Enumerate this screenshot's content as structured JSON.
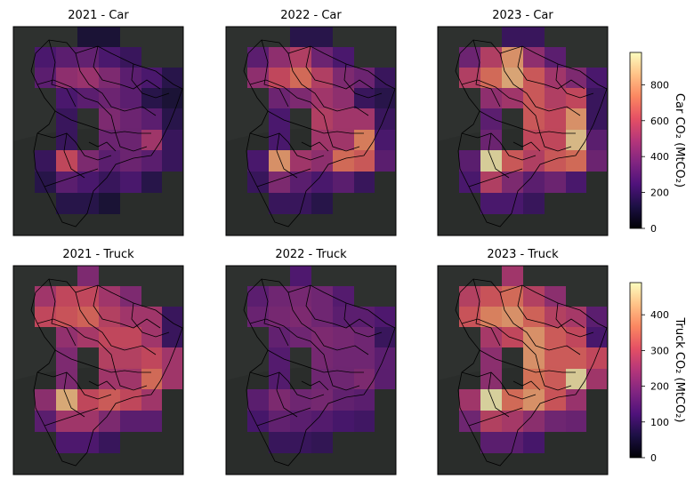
{
  "chart_data": {
    "type": "heatmap",
    "grid_rows": 10,
    "grid_cols": 8,
    "panels": [
      {
        "title": "2021 - Car",
        "group": "car",
        "values": [
          [
            0,
            0,
            0,
            100,
            100,
            0,
            0,
            0
          ],
          [
            0,
            250,
            300,
            320,
            250,
            200,
            0,
            0
          ],
          [
            0,
            300,
            450,
            480,
            400,
            300,
            250,
            150
          ],
          [
            0,
            0,
            250,
            300,
            350,
            300,
            150,
            100
          ],
          [
            0,
            0,
            200,
            0,
            400,
            350,
            300,
            150
          ],
          [
            0,
            0,
            200,
            0,
            350,
            350,
            500,
            200
          ],
          [
            0,
            200,
            600,
            400,
            300,
            350,
            300,
            200
          ],
          [
            0,
            150,
            300,
            250,
            200,
            250,
            150,
            0
          ],
          [
            0,
            0,
            150,
            150,
            100,
            0,
            0,
            0
          ],
          [
            0,
            0,
            0,
            0,
            0,
            0,
            0,
            0
          ]
        ]
      },
      {
        "title": "2022 - Car",
        "group": "car",
        "values": [
          [
            0,
            0,
            0,
            150,
            150,
            0,
            0,
            0
          ],
          [
            0,
            300,
            450,
            550,
            350,
            250,
            0,
            0
          ],
          [
            0,
            450,
            600,
            700,
            550,
            400,
            350,
            200
          ],
          [
            0,
            0,
            350,
            400,
            500,
            450,
            200,
            150
          ],
          [
            0,
            0,
            250,
            0,
            550,
            500,
            500,
            200
          ],
          [
            0,
            0,
            250,
            0,
            500,
            500,
            750,
            250
          ],
          [
            0,
            250,
            800,
            500,
            450,
            700,
            650,
            300
          ],
          [
            0,
            200,
            400,
            300,
            250,
            300,
            200,
            0
          ],
          [
            0,
            0,
            200,
            200,
            150,
            0,
            0,
            0
          ],
          [
            0,
            0,
            0,
            0,
            0,
            0,
            0,
            0
          ]
        ]
      },
      {
        "title": "2023 - Car",
        "group": "car",
        "values": [
          [
            0,
            0,
            0,
            200,
            200,
            0,
            0,
            0
          ],
          [
            0,
            350,
            550,
            800,
            450,
            300,
            0,
            0
          ],
          [
            0,
            550,
            700,
            850,
            650,
            500,
            400,
            250
          ],
          [
            0,
            0,
            450,
            500,
            650,
            550,
            600,
            200
          ],
          [
            0,
            0,
            300,
            0,
            650,
            600,
            800,
            200
          ],
          [
            0,
            0,
            350,
            0,
            600,
            600,
            900,
            300
          ],
          [
            0,
            300,
            950,
            650,
            550,
            650,
            700,
            350
          ],
          [
            0,
            250,
            550,
            400,
            300,
            350,
            250,
            0
          ],
          [
            0,
            0,
            250,
            250,
            200,
            0,
            0,
            0
          ],
          [
            0,
            0,
            0,
            0,
            0,
            0,
            0,
            0
          ]
        ]
      },
      {
        "title": "2021 - Truck",
        "group": "truck",
        "values": [
          [
            0,
            0,
            0,
            200,
            0,
            0,
            0,
            0
          ],
          [
            0,
            250,
            300,
            300,
            250,
            200,
            0,
            0
          ],
          [
            0,
            300,
            320,
            340,
            280,
            250,
            250,
            100
          ],
          [
            0,
            0,
            230,
            260,
            300,
            300,
            250,
            100
          ],
          [
            0,
            0,
            200,
            0,
            280,
            280,
            300,
            250
          ],
          [
            0,
            0,
            200,
            0,
            250,
            250,
            350,
            250
          ],
          [
            0,
            220,
            430,
            300,
            330,
            300,
            250,
            0
          ],
          [
            0,
            150,
            250,
            250,
            200,
            150,
            150,
            0
          ],
          [
            0,
            0,
            130,
            130,
            100,
            0,
            0,
            0
          ],
          [
            0,
            0,
            0,
            0,
            0,
            0,
            0,
            0
          ]
        ]
      },
      {
        "title": "2022 - Truck",
        "group": "truck",
        "values": [
          [
            0,
            0,
            0,
            130,
            0,
            0,
            0,
            0
          ],
          [
            0,
            150,
            180,
            190,
            180,
            140,
            0,
            0
          ],
          [
            0,
            170,
            190,
            200,
            180,
            150,
            150,
            130
          ],
          [
            0,
            0,
            160,
            180,
            200,
            190,
            180,
            100
          ],
          [
            0,
            0,
            140,
            0,
            190,
            180,
            180,
            150
          ],
          [
            0,
            0,
            140,
            0,
            180,
            180,
            200,
            150
          ],
          [
            0,
            150,
            200,
            180,
            190,
            160,
            150,
            0
          ],
          [
            0,
            120,
            160,
            150,
            140,
            120,
            110,
            0
          ],
          [
            0,
            0,
            100,
            100,
            90,
            0,
            0,
            0
          ],
          [
            0,
            0,
            0,
            0,
            0,
            0,
            0,
            0
          ]
        ]
      },
      {
        "title": "2023 - Truck",
        "group": "truck",
        "values": [
          [
            0,
            0,
            0,
            250,
            0,
            0,
            0,
            0
          ],
          [
            0,
            280,
            320,
            350,
            280,
            220,
            0,
            0
          ],
          [
            0,
            320,
            380,
            400,
            340,
            280,
            260,
            150
          ],
          [
            0,
            0,
            260,
            300,
            400,
            330,
            300,
            120
          ],
          [
            0,
            0,
            220,
            0,
            400,
            330,
            330,
            300
          ],
          [
            0,
            0,
            220,
            0,
            360,
            330,
            470,
            250
          ],
          [
            0,
            250,
            480,
            350,
            400,
            320,
            240,
            0
          ],
          [
            0,
            180,
            280,
            260,
            220,
            180,
            170,
            0
          ],
          [
            0,
            0,
            150,
            150,
            120,
            0,
            0,
            0
          ],
          [
            0,
            0,
            0,
            0,
            0,
            0,
            0,
            0
          ]
        ]
      }
    ],
    "colorbars": [
      {
        "group": "car",
        "label": "Car CO₂ (MtCO₂)",
        "range": [
          0,
          980
        ],
        "ticks": [
          0,
          200,
          400,
          600,
          800
        ]
      },
      {
        "group": "truck",
        "label": "Truck CO₂ (MtCO₂)",
        "range": [
          0,
          490
        ],
        "ticks": [
          0,
          100,
          200,
          300,
          400
        ]
      }
    ],
    "colormap": "magma"
  }
}
